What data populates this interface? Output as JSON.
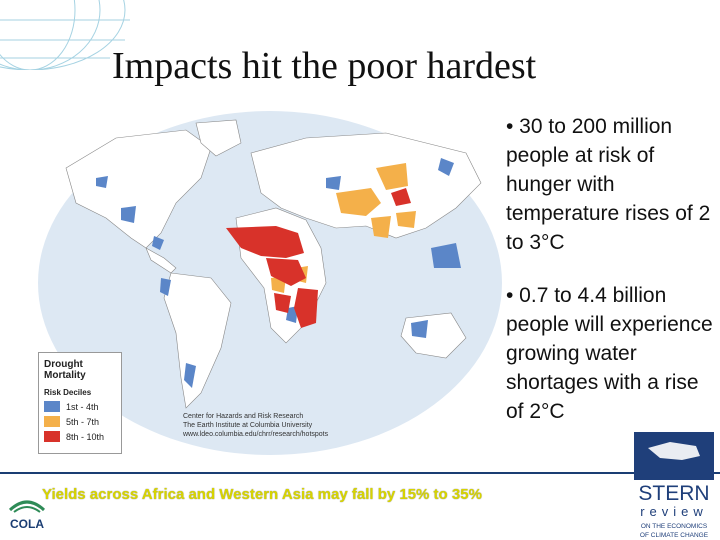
{
  "slide": {
    "title": "Impacts hit the poor hardest",
    "bullets": [
      "• 30 to 200 million people at risk of hunger with temperature rises of 2 to 3°C",
      "• 0.7 to 4.4 billion people will experience growing water shortages with a rise of 2°C"
    ],
    "footnote": "Yields across Africa and Western Asia may fall by 15% to 35%"
  },
  "map": {
    "legend_title": "Drought Mortality",
    "legend_subtitle": "Risk Deciles",
    "legend_items": [
      {
        "label": "1st - 4th",
        "color": "#5b86c8"
      },
      {
        "label": "5th - 7th",
        "color": "#f4b04a"
      },
      {
        "label": "8th - 10th",
        "color": "#d8322a"
      }
    ],
    "credit": [
      "Center for Hazards and Risk Research",
      "The Earth Institute at Columbia University",
      "www.ldeo.columbia.edu/chrr/research/hotspots"
    ]
  },
  "logos": {
    "cola": "COLA",
    "stern_line1": "STERN",
    "stern_line2": "review",
    "stern_line3": "ON THE ECONOMICS",
    "stern_line4": "OF CLIMATE CHANGE"
  },
  "colors": {
    "ocean": "#dde8f3",
    "land": "#ffffff",
    "low": "#5b86c8",
    "mid": "#f4b04a",
    "high": "#d8322a",
    "note": "#d7d400",
    "navy": "#1a3d73"
  }
}
